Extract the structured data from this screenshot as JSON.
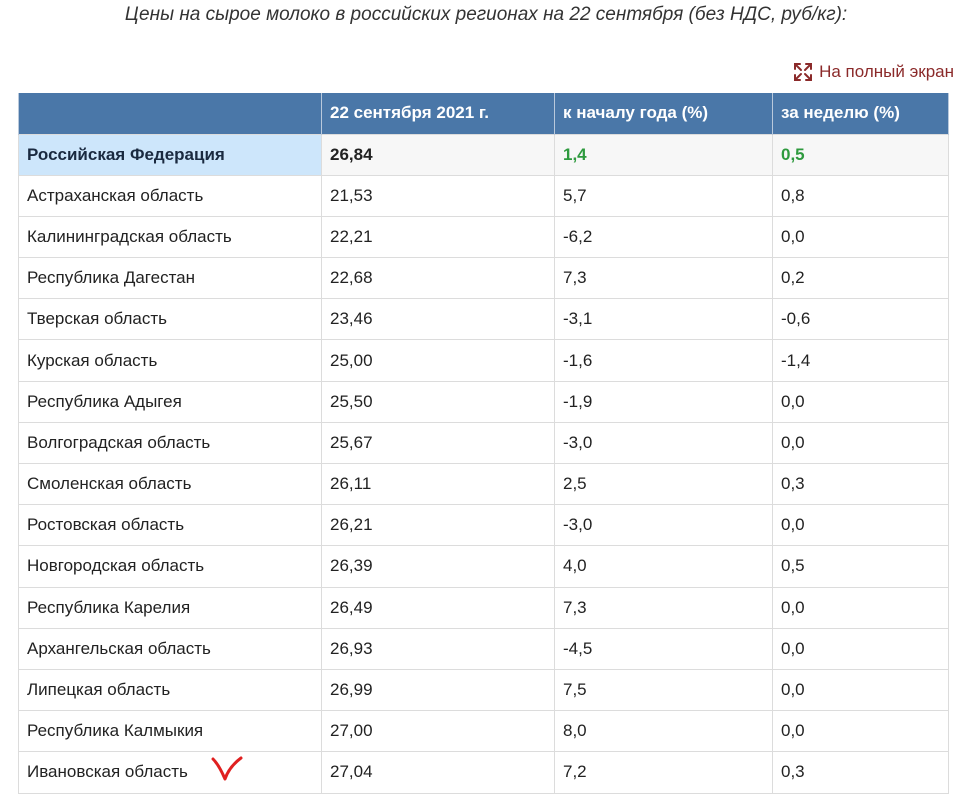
{
  "caption": "Цены на сырое молоко в российских регионах на 22 сентября (без НДС, руб/кг):",
  "fullscreen": {
    "label": "На полный экран",
    "icon": "expand-arrows-icon"
  },
  "table": {
    "headers": [
      "",
      "22 сентября 2021 г.",
      "к началу года (%)",
      "за неделю (%)"
    ],
    "total_row": [
      "Российская Федерация",
      "26,84",
      "1,4",
      "0,5"
    ],
    "rows": [
      [
        "Астраханская область",
        "21,53",
        "5,7",
        "0,8"
      ],
      [
        "Калининградская область",
        "22,21",
        "-6,2",
        "0,0"
      ],
      [
        "Республика Дагестан",
        "22,68",
        "7,3",
        "0,2"
      ],
      [
        "Тверская область",
        "23,46",
        "-3,1",
        "-0,6"
      ],
      [
        "Курская область",
        "25,00",
        "-1,6",
        "-1,4"
      ],
      [
        "Республика Адыгея",
        "25,50",
        "-1,9",
        "0,0"
      ],
      [
        "Волгоградская область",
        "25,67",
        "-3,0",
        "0,0"
      ],
      [
        "Смоленская область",
        "26,11",
        "2,5",
        "0,3"
      ],
      [
        "Ростовская область",
        "26,21",
        "-3,0",
        "0,0"
      ],
      [
        "Новгородская область",
        "26,39",
        "4,0",
        "0,5"
      ],
      [
        "Республика Карелия",
        "26,49",
        "7,3",
        "0,0"
      ],
      [
        "Архангельская область",
        "26,93",
        "-4,5",
        "0,0"
      ],
      [
        "Липецкая область",
        "26,99",
        "7,5",
        "0,0"
      ],
      [
        "Республика Калмыкия",
        "27,00",
        "8,0",
        "0,0"
      ],
      [
        "Ивановская область",
        "27,04",
        "7,2",
        "0,3"
      ]
    ]
  },
  "colors": {
    "header_bg": "#4a77a8",
    "highlight_bg": "#cde6fb",
    "positive": "#2e9a3e",
    "link": "#8b2a2a",
    "annotation": "#e02020"
  },
  "annotation": {
    "row_index": 14,
    "icon": "handwritten-checkmark-icon"
  }
}
